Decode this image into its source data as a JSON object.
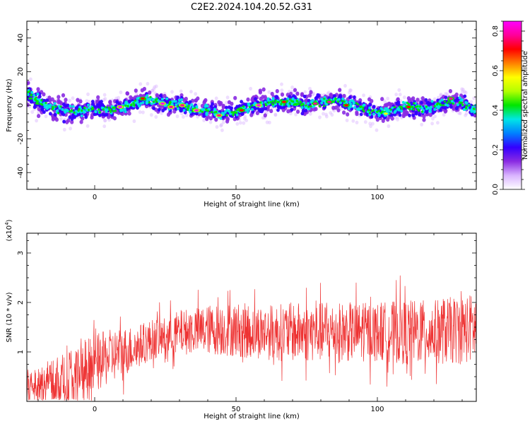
{
  "chart_data": [
    {
      "type": "heatmap",
      "title": "C2E2.2024.104.20.52.G31",
      "xlabel": "Height of straight line (km)",
      "ylabel": "Frequency (Hz)",
      "xlim": [
        -24,
        135
      ],
      "ylim": [
        -50,
        50
      ],
      "xticks": [
        0,
        50,
        100
      ],
      "yticks": [
        -40,
        -20,
        0,
        20,
        40
      ],
      "colorbar": {
        "label": "Normalized spectral amplitude",
        "range": [
          0,
          0.85
        ],
        "ticks": [
          0.0,
          0.2,
          0.4,
          0.6,
          0.8
        ],
        "colors": [
          "#ffffff",
          "#d9b3ff",
          "#8a2be2",
          "#3300ff",
          "#0080ff",
          "#00e6e6",
          "#00e600",
          "#b3ff00",
          "#ffff00",
          "#ff8000",
          "#ff0000",
          "#ff0099",
          "#ff00ff"
        ]
      },
      "center_track": {
        "x": [
          -24,
          -20,
          -15,
          -10,
          -5,
          0,
          5,
          10,
          15,
          20,
          25,
          30,
          35,
          40,
          45,
          50,
          55,
          60,
          65,
          70,
          75,
          80,
          85,
          90,
          95,
          100,
          105,
          110,
          115,
          120,
          125,
          130,
          135
        ],
        "freq": [
          8,
          2,
          -2,
          -4,
          -3,
          -2,
          -3,
          -1,
          2,
          3,
          1,
          0,
          -2,
          -3,
          -5,
          -4,
          -1,
          1,
          2,
          2,
          0,
          2,
          3,
          1,
          -2,
          -4,
          -3,
          0,
          -2,
          -1,
          2,
          1,
          -3
        ]
      },
      "peaks": [
        {
          "x": 9,
          "freq": -1,
          "amp": 0.82
        },
        {
          "x": 17,
          "freq": 4,
          "amp": 0.7
        },
        {
          "x": 24,
          "freq": 1,
          "amp": 0.85
        },
        {
          "x": 27,
          "freq": -1,
          "amp": 0.78
        },
        {
          "x": 31,
          "freq": 0,
          "amp": 0.8
        },
        {
          "x": 36,
          "freq": -3,
          "amp": 0.84
        },
        {
          "x": 44,
          "freq": -6,
          "amp": 0.8
        },
        {
          "x": 52,
          "freq": -3,
          "amp": 0.72
        },
        {
          "x": 58,
          "freq": 0,
          "amp": 0.82
        },
        {
          "x": 67,
          "freq": 2,
          "amp": 0.7
        },
        {
          "x": 78,
          "freq": 1,
          "amp": 0.75
        },
        {
          "x": 83,
          "freq": 2,
          "amp": 0.76
        },
        {
          "x": 89,
          "freq": 0,
          "amp": 0.68
        },
        {
          "x": 103,
          "freq": -5,
          "amp": 0.6
        },
        {
          "x": 111,
          "freq": -1,
          "amp": 0.72
        },
        {
          "x": 126,
          "freq": 4,
          "amp": 0.75
        }
      ]
    },
    {
      "type": "line",
      "xlabel": "Height of straight line (km)",
      "ylabel": "SNR (10 * v/v)",
      "scale_label": "(x10",
      "scale_exp": "4",
      "xlim": [
        -24,
        135
      ],
      "ylim": [
        0,
        3.4
      ],
      "xticks": [
        0,
        50,
        100
      ],
      "yticks": [
        1,
        2,
        3
      ],
      "color": "#ee3333",
      "envelope": {
        "x": [
          -24,
          -15,
          -10,
          -5,
          0,
          5,
          10,
          15,
          20,
          25,
          30,
          40,
          50,
          60,
          70,
          80,
          90,
          100,
          110,
          120,
          130,
          135
        ],
        "baseline": [
          0.3,
          0.35,
          0.45,
          0.6,
          0.75,
          0.9,
          1.0,
          1.1,
          1.25,
          1.3,
          1.4,
          1.45,
          1.45,
          1.4,
          1.4,
          1.4,
          1.4,
          1.4,
          1.4,
          1.4,
          1.45,
          1.5
        ],
        "amplitude": [
          0.35,
          0.5,
          0.6,
          0.65,
          0.6,
          0.55,
          0.5,
          0.45,
          0.4,
          0.4,
          0.45,
          0.5,
          0.55,
          0.55,
          0.6,
          0.6,
          0.6,
          0.6,
          0.65,
          0.65,
          0.7,
          0.7
        ]
      }
    }
  ]
}
